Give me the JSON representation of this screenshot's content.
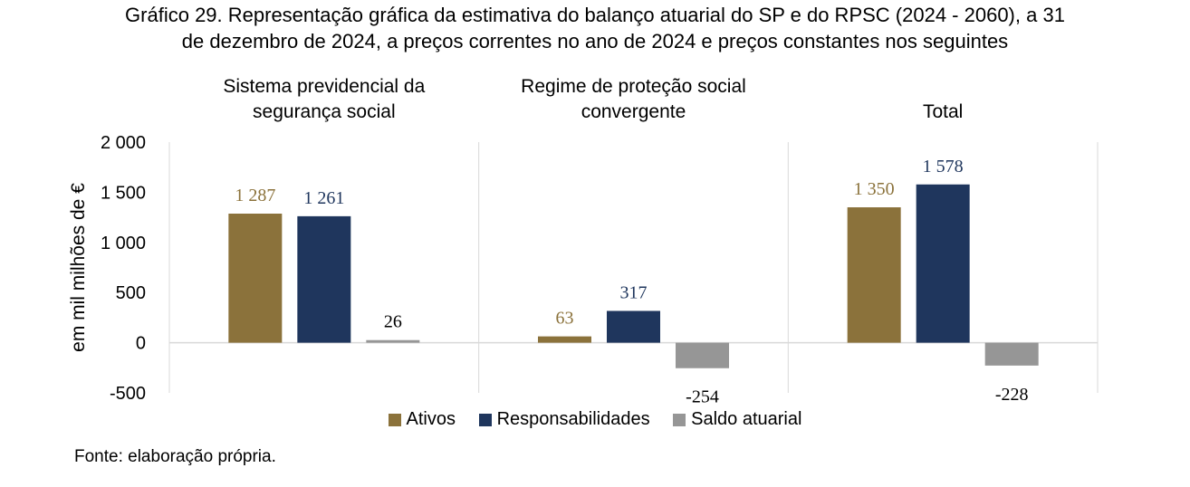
{
  "title": {
    "line1": "Gráfico 29. Representação gráfica da estimativa do balanço atuarial do SP e do RPSC (2024 - 2060), a 31",
    "line2": "de dezembro de 2024, a preços correntes no ano de 2024 e preços constantes nos seguintes"
  },
  "source": "Fonte: elaboração própria.",
  "colors": {
    "Ativos": "#8b723b",
    "Responsabilidades": "#1f365d",
    "Saldo atuarial": "#969696"
  },
  "chart_data": {
    "type": "bar",
    "ylabel": "em mil milhões de €",
    "ylim": [
      -500,
      2000
    ],
    "yticks": [
      -500,
      0,
      500,
      1000,
      1500,
      2000
    ],
    "ytick_labels": [
      "-500",
      "0",
      "500",
      "1 000",
      "1 500",
      "2 000"
    ],
    "categories": [
      "Sistema previdencial da segurança social",
      "Regime de proteção social convergente",
      "Total"
    ],
    "category_label_lines": [
      [
        "Sistema previdencial da",
        "segurança social"
      ],
      [
        "Regime de proteção social",
        "convergente"
      ],
      [
        "Total"
      ]
    ],
    "series": [
      {
        "name": "Ativos",
        "values": [
          1287,
          63,
          1350
        ],
        "labels": [
          "1 287",
          "63",
          "1 350"
        ]
      },
      {
        "name": "Responsabilidades",
        "values": [
          1261,
          317,
          1578
        ],
        "labels": [
          "1 261",
          "317",
          "1 578"
        ]
      },
      {
        "name": "Saldo atuarial",
        "values": [
          26,
          -254,
          -228
        ],
        "labels": [
          "26",
          "-254",
          "-228"
        ]
      }
    ],
    "legend": "bottom"
  }
}
